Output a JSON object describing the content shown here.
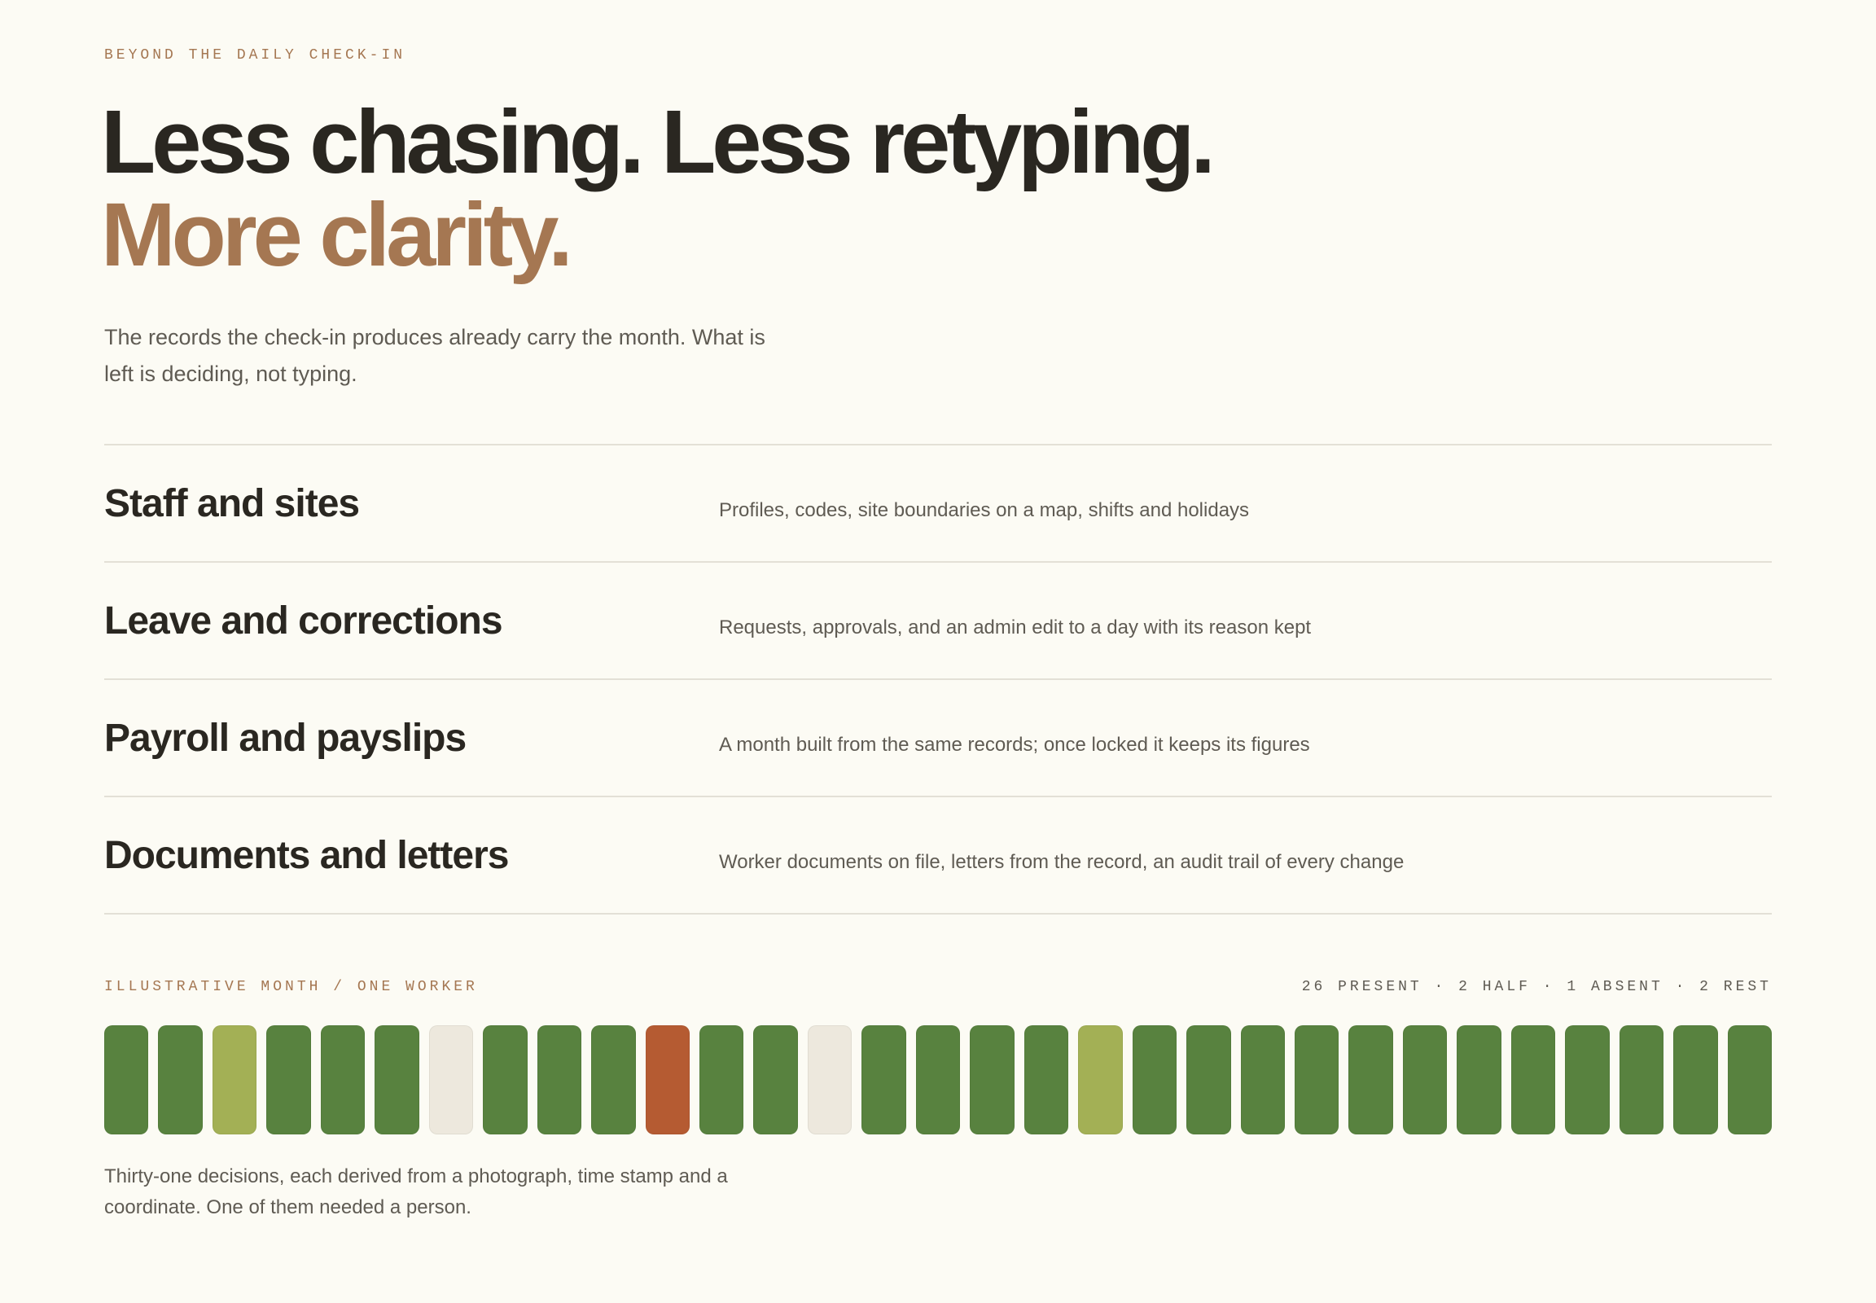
{
  "eyebrow": "BEYOND THE DAILY CHECK-IN",
  "headline": {
    "line1": "Less chasing. Less retyping.",
    "line2": "More clarity."
  },
  "intro": "The records the check-in produces already carry the month. What is left is deciding, not typing.",
  "features": [
    {
      "title": "Staff and sites",
      "description": "Profiles, codes, site boundaries on a map, shifts and holidays"
    },
    {
      "title": "Leave and corrections",
      "description": "Requests, approvals, and an admin edit to a day with its reason kept"
    },
    {
      "title": "Payroll and payslips",
      "description": "A month built from the same records; once locked it keeps its figures"
    },
    {
      "title": "Documents and letters",
      "description": "Worker documents on file, letters from the record, an audit trail of every change"
    }
  ],
  "month": {
    "label": "ILLUSTRATIVE MONTH / ONE WORKER",
    "summary": "26 PRESENT · 2 HALF · 1 ABSENT · 2 REST",
    "cells": [
      "#58823f",
      "#58823f",
      "#a3b055",
      "#58823f",
      "#58823f",
      "#58823f",
      "#ede8dd",
      "#58823f",
      "#58823f",
      "#58823f",
      "#b55b32",
      "#58823f",
      "#58823f",
      "#ede8dd",
      "#58823f",
      "#58823f",
      "#58823f",
      "#58823f",
      "#a3b055",
      "#58823f",
      "#58823f",
      "#58823f",
      "#58823f",
      "#58823f",
      "#58823f",
      "#58823f",
      "#58823f",
      "#58823f",
      "#58823f",
      "#58823f",
      "#58823f"
    ],
    "caption": "Thirty-one decisions, each derived from a photograph, time stamp and a coordinate. One of them needed a person."
  }
}
